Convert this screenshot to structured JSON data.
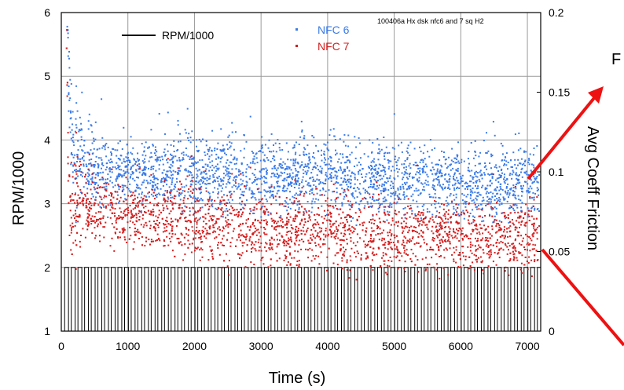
{
  "chart_data": {
    "type": "scatter",
    "annotation": "100406a Hx dsk nfc6 and 7 sq H2",
    "xlabel": "Time (s)",
    "ylabel_left": "RPM/1000",
    "ylabel_right": "Avg Coeff Friction",
    "xlim": [
      0,
      7200
    ],
    "ylim_left": [
      1,
      6
    ],
    "ylim_right": [
      0,
      0.2
    ],
    "xticks": [
      "0",
      "1000",
      "2000",
      "3000",
      "4000",
      "5000",
      "6000",
      "7000"
    ],
    "yticks_left": [
      "1",
      "2",
      "3",
      "4",
      "5",
      "6"
    ],
    "yticks_right": [
      "0",
      "0.05",
      "0.1",
      "0.15",
      "0.2"
    ],
    "grid": true,
    "legend": [
      "RPM/1000",
      "NFC 6",
      "NFC 7"
    ],
    "cropped_text": "F",
    "series": [
      {
        "name": "RPM/1000",
        "axis": "left",
        "color": "#000000",
        "style": "line",
        "levels": [
          1,
          2
        ],
        "cycle_period_s": 100
      },
      {
        "name": "NFC 6",
        "axis": "right",
        "color": "#3a7be8",
        "style": "points",
        "x": [
          80,
          100,
          120,
          150,
          200,
          300,
          500,
          800,
          1200,
          1600,
          2000,
          2500,
          3000,
          3500,
          3650,
          4000,
          4500,
          5000,
          5500,
          6000,
          6500,
          7000,
          7150
        ],
        "y": [
          0.2,
          0.18,
          0.16,
          0.13,
          0.11,
          0.105,
          0.1,
          0.1,
          0.1,
          0.099,
          0.099,
          0.098,
          0.097,
          0.098,
          0.099,
          0.097,
          0.095,
          0.094,
          0.093,
          0.093,
          0.092,
          0.092,
          0.092
        ]
      },
      {
        "name": "NFC 7",
        "axis": "right",
        "color": "#d41f1f",
        "style": "points",
        "x": [
          80,
          100,
          120,
          150,
          200,
          300,
          500,
          800,
          1200,
          1600,
          2000,
          2500,
          3000,
          3500,
          4000,
          4500,
          5000,
          5500,
          6000,
          6500,
          7000,
          7150
        ],
        "y": [
          0.19,
          0.1,
          0.09,
          0.08,
          0.08,
          0.078,
          0.076,
          0.074,
          0.072,
          0.07,
          0.068,
          0.066,
          0.065,
          0.063,
          0.062,
          0.061,
          0.06,
          0.06,
          0.06,
          0.059,
          0.059,
          0.06
        ]
      }
    ],
    "arrows_color": "#ee1111"
  }
}
